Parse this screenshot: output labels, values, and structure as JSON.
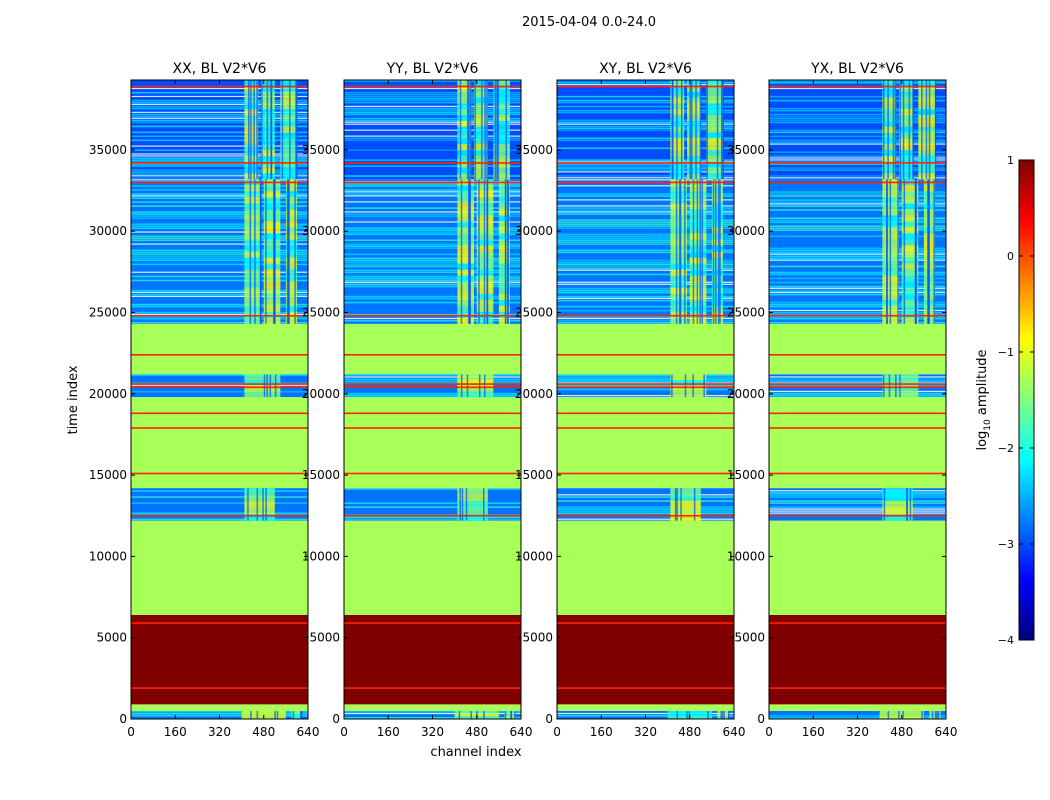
{
  "chart_data": {
    "type": "heatmap",
    "title": "2015-04-04 0.0-24.0",
    "xlabel": "channel index",
    "ylabel": "time index",
    "xlim": [
      0,
      640
    ],
    "ylim": [
      0,
      39300
    ],
    "x_ticks": [
      0,
      160,
      320,
      480,
      640
    ],
    "y_ticks": [
      0,
      5000,
      10000,
      15000,
      20000,
      25000,
      30000,
      35000
    ],
    "panels": [
      {
        "title": "XX, BL V2*V6",
        "x_ticks": [
          "0",
          "160",
          "320",
          "480",
          "640"
        ],
        "y_ticks": [
          "0",
          "5000",
          "10000",
          "15000",
          "20000",
          "25000",
          "30000",
          "35000"
        ],
        "y_ticks_shown": [
          0,
          1,
          2,
          3,
          4,
          5,
          6,
          7
        ]
      },
      {
        "title": "YY, BL V2*V6",
        "x_ticks": [
          "0",
          "160",
          "320",
          "480",
          "640"
        ],
        "y_ticks": [
          "0",
          "5000",
          "10000",
          "15000",
          "20000",
          "25000",
          "30000",
          "35000"
        ],
        "y_ticks_shown": [
          0,
          1,
          2,
          3,
          4,
          5,
          6,
          7
        ]
      },
      {
        "title": "XY, BL V2*V6",
        "x_ticks": [
          "0",
          "160",
          "320",
          "480",
          "640"
        ],
        "y_ticks": [
          "0",
          "5000",
          "10000",
          "15000",
          "20000",
          "25000",
          "30000",
          "35000"
        ],
        "y_ticks_shown": [
          0,
          1,
          2,
          3,
          4,
          5,
          6,
          7
        ]
      },
      {
        "title": "YX, BL V2*V6",
        "x_ticks": [
          "0",
          "160",
          "320",
          "480",
          "640"
        ],
        "y_ticks": [
          "0",
          "5000",
          "10000",
          "15000",
          "20000",
          "25000",
          "30000",
          "35000"
        ],
        "y_ticks_shown": [
          0,
          1,
          2,
          3,
          4,
          5,
          6,
          7
        ]
      }
    ],
    "time_bands": [
      {
        "y0": 0,
        "y1": 500,
        "log_amplitude": -2.8,
        "kind": "noise",
        "rfi_channels": [
          [
            400,
            560
          ],
          [
            580,
            620
          ]
        ]
      },
      {
        "y0": 500,
        "y1": 900,
        "log_amplitude": -1.3,
        "kind": "flat"
      },
      {
        "y0": 900,
        "y1": 6400,
        "log_amplitude": 1.0,
        "kind": "flat"
      },
      {
        "y0": 6400,
        "y1": 12200,
        "log_amplitude": -1.3,
        "kind": "flat"
      },
      {
        "y0": 12200,
        "y1": 14200,
        "log_amplitude": -2.8,
        "kind": "noise",
        "rfi_channels": [
          [
            410,
            520
          ]
        ]
      },
      {
        "y0": 14200,
        "y1": 19800,
        "log_amplitude": -1.3,
        "kind": "flat"
      },
      {
        "y0": 19800,
        "y1": 21200,
        "log_amplitude": -2.8,
        "kind": "noise",
        "rfi_channels": [
          [
            410,
            540
          ]
        ]
      },
      {
        "y0": 21200,
        "y1": 24300,
        "log_amplitude": -1.3,
        "kind": "flat"
      },
      {
        "y0": 24300,
        "y1": 33200,
        "log_amplitude": -2.8,
        "kind": "noise",
        "rfi_channels": [
          [
            410,
            470
          ],
          [
            480,
            540
          ],
          [
            560,
            600
          ]
        ]
      },
      {
        "y0": 33200,
        "y1": 39300,
        "log_amplitude": -3.0,
        "kind": "noise",
        "rfi_channels": [
          [
            410,
            460
          ],
          [
            470,
            520
          ],
          [
            540,
            600
          ]
        ]
      }
    ],
    "flag_lines": [
      1900,
      5900,
      12500,
      15100,
      17900,
      18800,
      20400,
      20600,
      22400,
      24800,
      33000,
      34200,
      38900
    ],
    "colorbar": {
      "label": "log10 amplitude",
      "label_main": "log",
      "label_sub": "10",
      "label_rest": " amplitude",
      "range": [
        -4,
        1
      ],
      "ticks": [
        "1",
        "0",
        "−1",
        "−2",
        "−3",
        "−4"
      ],
      "colormap": "jet",
      "stops": [
        "#00007f",
        "#0000ff",
        "#007fff",
        "#00ffff",
        "#7fff7f",
        "#ffff00",
        "#ff7f00",
        "#ff0000",
        "#7f0000"
      ]
    }
  }
}
